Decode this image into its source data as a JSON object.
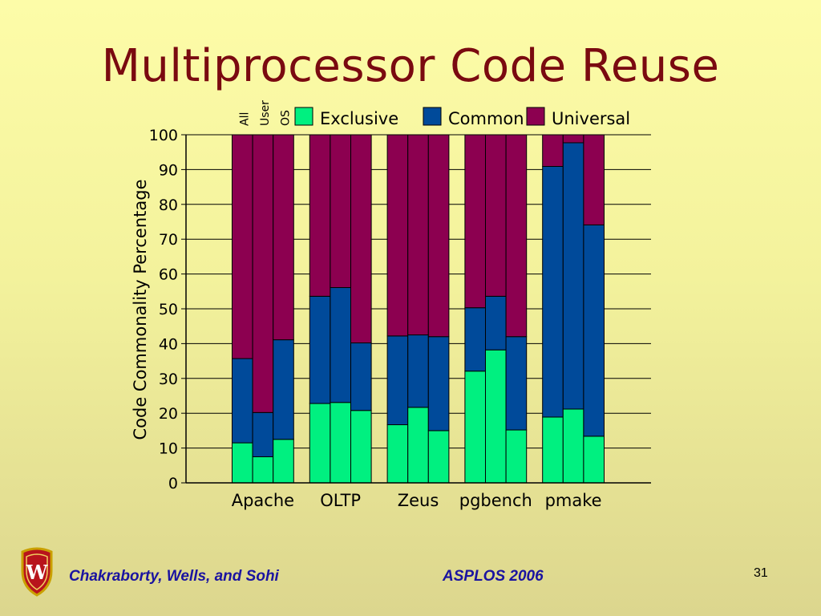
{
  "slide": {
    "title": "Multiprocessor Code Reuse",
    "footer_authors": "Chakraborty, Wells, and Sohi",
    "footer_venue": "ASPLOS 2006",
    "page_number": "31",
    "logo_letter": "W"
  },
  "chart_data": {
    "type": "bar",
    "stacked": true,
    "title": "",
    "xlabel": "",
    "ylabel": "Code Commonality Percentage",
    "ylim": [
      0,
      100
    ],
    "yticks": [
      0,
      10,
      20,
      30,
      40,
      50,
      60,
      70,
      80,
      90,
      100
    ],
    "grid": true,
    "legend_position": "top",
    "group_labels": [
      "Apache",
      "OLTP",
      "Zeus",
      "pgbench",
      "pmake"
    ],
    "bar_labels": [
      "All",
      "User",
      "OS"
    ],
    "series": [
      {
        "name": "Exclusive",
        "color": "#00f080",
        "values": [
          [
            11.5,
            7.5,
            12.5
          ],
          [
            22.8,
            23.1,
            20.8
          ],
          [
            16.7,
            21.7,
            15.0
          ],
          [
            32.1,
            38.2,
            15.2
          ],
          [
            18.9,
            21.2,
            13.4
          ]
        ]
      },
      {
        "name": "Common",
        "color": "#004a9a",
        "values": [
          [
            24.2,
            12.7,
            28.6
          ],
          [
            30.8,
            33.0,
            19.4
          ],
          [
            25.5,
            20.8,
            27.0
          ],
          [
            18.2,
            15.4,
            26.8
          ],
          [
            72.0,
            76.5,
            60.7
          ]
        ]
      },
      {
        "name": "Universal",
        "color": "#8c0050",
        "values": [
          [
            64.3,
            79.8,
            58.9
          ],
          [
            46.4,
            43.9,
            59.8
          ],
          [
            57.8,
            57.5,
            58.0
          ],
          [
            49.7,
            46.4,
            58.0
          ],
          [
            9.1,
            2.3,
            25.9
          ]
        ]
      }
    ],
    "colors": {
      "axis": "#000000",
      "grid": "#000000",
      "bar_outline": "#000000"
    }
  }
}
